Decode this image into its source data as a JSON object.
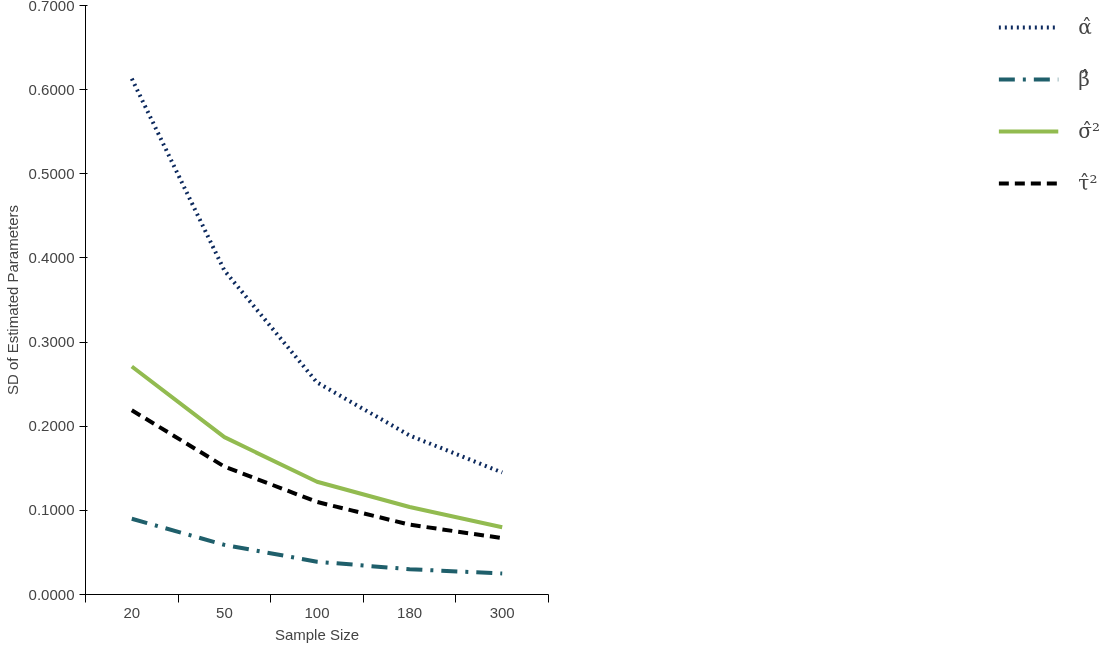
{
  "chart_data": {
    "type": "line",
    "xlabel": "Sample Size",
    "ylabel": "SD of Estimated Parameters",
    "categories": [
      "20",
      "50",
      "100",
      "180",
      "300"
    ],
    "series": [
      {
        "name": "α̂",
        "color": "#0d2a5e",
        "line_style": "dotted",
        "values": [
          0.613,
          0.385,
          0.252,
          0.189,
          0.145
        ]
      },
      {
        "name": "β̂",
        "color": "#1f5f6b",
        "line_style": "dashdot",
        "values": [
          0.09,
          0.059,
          0.039,
          0.03,
          0.025
        ]
      },
      {
        "name": "σ̂²",
        "color": "#92bb50",
        "line_style": "solid",
        "values": [
          0.271,
          0.187,
          0.134,
          0.104,
          0.08
        ]
      },
      {
        "name": "τ̂²",
        "color": "#000000",
        "line_style": "dashed",
        "values": [
          0.219,
          0.152,
          0.11,
          0.083,
          0.067
        ]
      }
    ],
    "ylim": [
      0,
      0.7
    ],
    "yticks": [
      {
        "value": 0,
        "label": "0.0000"
      },
      {
        "value": 0.1,
        "label": "0.1000"
      },
      {
        "value": 0.2,
        "label": "0.2000"
      },
      {
        "value": 0.3,
        "label": "0.3000"
      },
      {
        "value": 0.4,
        "label": "0.4000"
      },
      {
        "value": 0.5,
        "label": "0.5000"
      },
      {
        "value": 0.6,
        "label": "0.6000"
      },
      {
        "value": 0.7,
        "label": "0.7000"
      }
    ],
    "grid": false,
    "legend": "right",
    "marker": "none"
  }
}
